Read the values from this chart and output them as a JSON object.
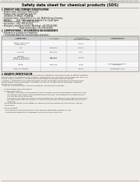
{
  "bg_color": "#f0ede8",
  "title": "Safety data sheet for chemical products (SDS)",
  "header_left": "Product Name: Lithium Ion Battery Cell",
  "header_right_line1": "Reference: Catalog: SBR-049-00818",
  "header_right_line2": "Established / Revision: Dec.7.2016",
  "section1_title": "1. PRODUCT AND COMPANY IDENTIFICATION",
  "section1_lines": [
    "  • Product name: Lithium Ion Battery Cell",
    "  • Product code: CylinderType type cell",
    "     SY18650U, SY18650C, SY18650A",
    "  • Company name:   Sanyo Electric Co., Ltd., Mobile Energy Company",
    "  • Address:         2001  Kamitosakami, Sumoto-City, Hyogo, Japan",
    "  • Telephone number:  +81-(799)-20-4111",
    "  • Fax number:  +81-(799)-20-4120",
    "  • Emergency telephone number (Weekday): +81-799-20-3062",
    "                                  (Night and holiday): +81-799-20-4101"
  ],
  "section2_title": "2. COMPOSITIONAL / INFORMATION ON INGREDIENTS",
  "section2_sub": "  • Substance or preparation: Preparation",
  "section2_sub2": "    • Information about the chemical nature of product:",
  "table_headers": [
    "Component\nchemical name",
    "CAS number",
    "Concentration /\nConcentration range",
    "Classification and\nhazard labeling"
  ],
  "table_rows": [
    [
      "Lithium cobalt oxide\n(LiMnCo₂(Co))",
      "-",
      "30-60%",
      ""
    ],
    [
      "Iron",
      "7439-89-6",
      "15-20%",
      "-"
    ],
    [
      "Aluminum",
      "7429-90-5",
      "2-5%",
      "-"
    ],
    [
      "Graphite\n(Made in graphite-1)\n(Ad-Mo as graphite-1)",
      "7782-42-5\n7782-44-7",
      "10-25%",
      ""
    ],
    [
      "Copper",
      "7440-50-8",
      "5-15%",
      "Sensitization of the skin\ngroup No.2"
    ],
    [
      "Organic electrolyte",
      "-",
      "10-20%",
      "Inflammable liquid"
    ]
  ],
  "section3_title": "3. HAZARDS IDENTIFICATION",
  "section3_lines": [
    "For the battery can, chemical materials are stored in a hermetically sealed metal case, designed to withstand",
    "temperatures during production-spec conditions. During normal use, as a result, during normal use, there is no",
    "physical danger of ignition or expiration and thermo-danger of hazardous materials leakage.",
    "  However, if exposed to a fire, added mechanical shocks, decomposes, where electro alarms may issue,",
    "the gas release cannot be operated. The battery cell case will be breached or the extreme, hazardous",
    "materials may be released.",
    "  Moreover, if heated strongly by the surrounding fire, solid gas may be emitted.",
    "",
    "  •  Most important hazard and effects:",
    "      Human health effects:",
    "           Inhalation: The release of the electrolyte has an anesthesia action and stimulates in respiratory tract.",
    "           Skin contact: The release of the electrolyte stimulates a skin. The electrolyte skin contact causes a",
    "           sore and stimulation on the skin.",
    "           Eye contact: The release of the electrolyte stimulates eyes. The electrolyte eye contact causes a sore",
    "           and stimulation on the eye. Especially, a substance that causes a strong inflammation of the eyes is",
    "           contained.",
    "      Environmental effects: Since a battery cell remains in the environment, do not throw out it into the",
    "      environment.",
    "",
    "  •  Specific hazards:",
    "       If the electrolyte contacts with water, it will generate detrimental hydrogen fluoride.",
    "       Since the seal-electrolyte is inflammable liquid, do not bring close to fire."
  ]
}
